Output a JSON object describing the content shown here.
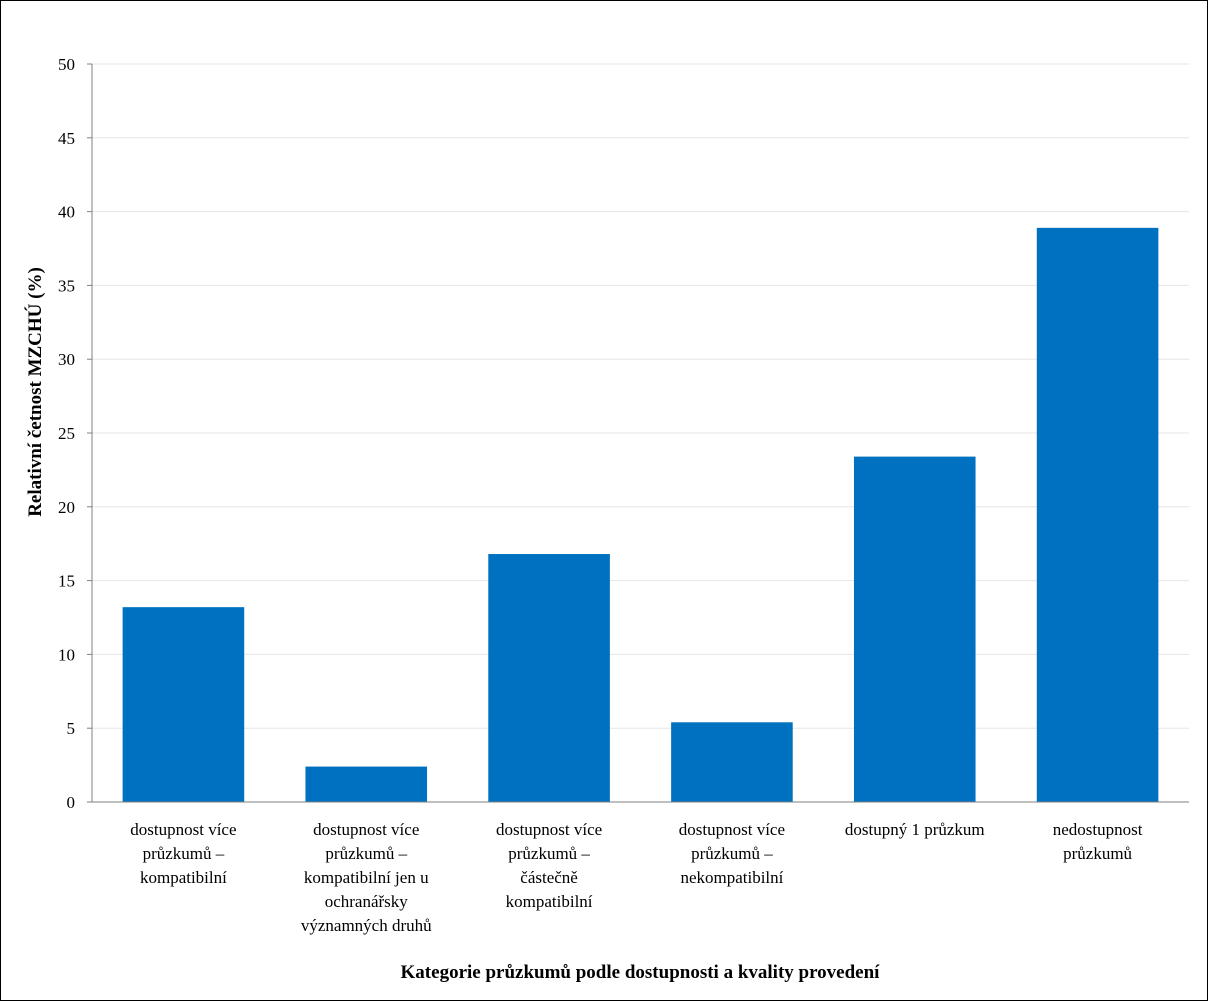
{
  "chart_data": {
    "type": "bar",
    "categories": [
      [
        "dostupnost více",
        "průzkumů –",
        "kompatibilní"
      ],
      [
        "dostupnost více",
        "průzkumů –",
        "kompatibilní jen u",
        "ochranářsky",
        "významných druhů"
      ],
      [
        "dostupnost více",
        "průzkumů –",
        "částečně",
        "kompatibilní"
      ],
      [
        "dostupnost více",
        "průzkumů –",
        "nekompatibilní"
      ],
      [
        "dostupný 1 průzkum"
      ],
      [
        "nedostupnost",
        "průzkumů"
      ]
    ],
    "values": [
      13.2,
      2.4,
      16.8,
      5.4,
      23.4,
      38.9
    ],
    "xlabel": "Kategorie průzkumů podle dostupnosti a kvality provedení",
    "ylabel": "Relativní četnost MZCHÚ (%)",
    "ylim": [
      0,
      50
    ],
    "yticks": [
      0,
      5,
      10,
      15,
      20,
      25,
      30,
      35,
      40,
      45,
      50
    ],
    "grid": true,
    "legend": "none",
    "bar_color": "#0070C0",
    "grid_color": "#e6e6e6",
    "axis_color": "#808080"
  }
}
